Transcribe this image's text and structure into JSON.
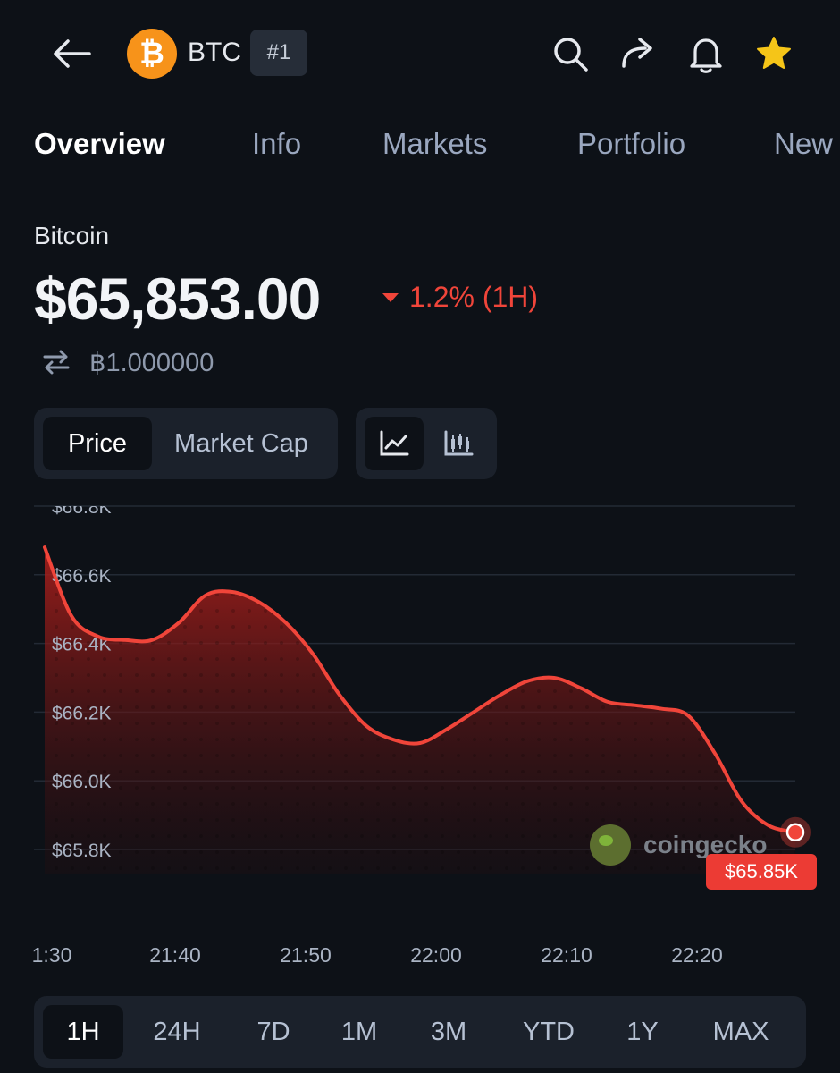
{
  "header": {
    "ticker": "BTC",
    "rank": "#1",
    "coin_color": "#f7931a",
    "icons": [
      "back-arrow-icon",
      "search-icon",
      "share-icon",
      "bell-icon",
      "star-icon"
    ]
  },
  "tabs": [
    {
      "label": "Overview",
      "active": true
    },
    {
      "label": "Info",
      "active": false
    },
    {
      "label": "Markets",
      "active": false
    },
    {
      "label": "Portfolio",
      "active": false
    },
    {
      "label": "New",
      "active": false
    }
  ],
  "coin": {
    "name": "Bitcoin",
    "price": "$65,853.00",
    "change": "1.2% (1H)",
    "change_direction": "down",
    "btc_amount": "฿1.000000"
  },
  "toggles": {
    "price_label": "Price",
    "market_cap_label": "Market Cap",
    "selected": "Price",
    "chart_type_selected": "line"
  },
  "chart_data": {
    "type": "area",
    "y_ticks": [
      "$66.8K",
      "$66.6K",
      "$66.4K",
      "$66.2K",
      "$66.0K",
      "$65.8K"
    ],
    "x_ticks": [
      "1:30",
      "21:40",
      "21:50",
      "22:00",
      "22:10",
      "22:20"
    ],
    "ylim": [
      65.8,
      66.8
    ],
    "x": [
      "21:31",
      "21:33",
      "21:35",
      "21:37",
      "21:39",
      "21:41",
      "21:43",
      "21:45",
      "21:47",
      "21:49",
      "21:51",
      "21:53",
      "21:55",
      "21:57",
      "21:59",
      "22:01",
      "22:03",
      "22:05",
      "22:07",
      "22:09",
      "22:11",
      "22:13",
      "22:15",
      "22:17",
      "22:19",
      "22:21",
      "22:23",
      "22:25",
      "22:27"
    ],
    "y": [
      66.68,
      66.48,
      66.42,
      66.41,
      66.41,
      66.46,
      66.54,
      66.55,
      66.52,
      66.46,
      66.37,
      66.25,
      66.16,
      66.12,
      66.11,
      66.15,
      66.2,
      66.25,
      66.29,
      66.3,
      66.27,
      66.23,
      66.22,
      66.21,
      66.19,
      66.08,
      65.94,
      65.87,
      65.85
    ],
    "last_value_label": "$65.85K",
    "line_color": "#f0453a",
    "grid": true
  },
  "watermark": "coingecko",
  "ranges": [
    {
      "label": "1H",
      "active": true
    },
    {
      "label": "24H",
      "active": false
    },
    {
      "label": "7D",
      "active": false
    },
    {
      "label": "1M",
      "active": false
    },
    {
      "label": "3M",
      "active": false
    },
    {
      "label": "YTD",
      "active": false
    },
    {
      "label": "1Y",
      "active": false
    },
    {
      "label": "MAX",
      "active": false
    }
  ]
}
